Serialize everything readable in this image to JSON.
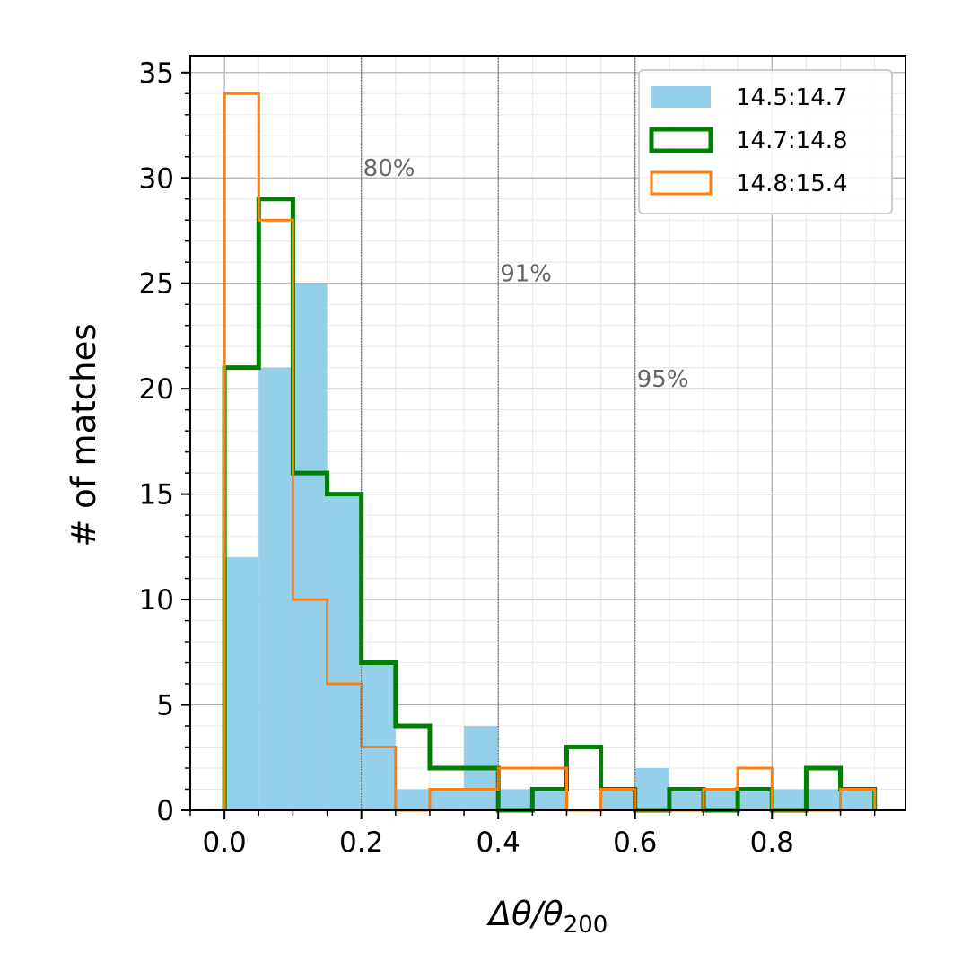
{
  "chart_data": {
    "type": "histogram",
    "xlabel": "Δθ/θ",
    "xlabel_sub": "200",
    "ylabel": "# of matches",
    "xlim": [
      -0.05,
      0.995
    ],
    "ylim": [
      0,
      35.8
    ],
    "x_ticks": [
      0.0,
      0.2,
      0.4,
      0.6,
      0.8
    ],
    "x_tick_labels": [
      "0.0",
      "0.2",
      "0.4",
      "0.6",
      "0.8"
    ],
    "y_ticks": [
      0,
      5,
      10,
      15,
      20,
      25,
      30,
      35
    ],
    "y_tick_labels": [
      "0",
      "5",
      "10",
      "15",
      "20",
      "25",
      "30",
      "35"
    ],
    "grid": true,
    "minor_grid": true,
    "legend_placement": "upper right",
    "bin_edges": [
      0.0,
      0.05,
      0.1,
      0.15,
      0.2,
      0.25,
      0.3,
      0.35,
      0.4,
      0.45,
      0.5,
      0.55,
      0.6,
      0.65,
      0.7,
      0.75,
      0.8,
      0.85,
      0.9,
      0.95
    ],
    "series": [
      {
        "name": "14.5:14.7",
        "style": "filled",
        "color": "#95d0eb",
        "counts": [
          12,
          21,
          25,
          15,
          7,
          1,
          1,
          4,
          1,
          1,
          0,
          1,
          2,
          1,
          1,
          1,
          1,
          1,
          1
        ]
      },
      {
        "name": "14.7:14.8",
        "style": "step",
        "color": "#008000",
        "counts": [
          21,
          29,
          16,
          15,
          7,
          4,
          2,
          2,
          0,
          1,
          3,
          1,
          0,
          1,
          0,
          1,
          0,
          2,
          1
        ]
      },
      {
        "name": "14.8:15.4",
        "style": "step",
        "color": "#ff7f0e",
        "counts": [
          34,
          28,
          10,
          6,
          3,
          0,
          1,
          1,
          2,
          2,
          0,
          1,
          0,
          0,
          1,
          2,
          0,
          0,
          1
        ]
      }
    ],
    "vlines": [
      {
        "x": 0.2,
        "label": "80%",
        "label_y": 30.1
      },
      {
        "x": 0.4,
        "label": "91%",
        "label_y": 25.1
      },
      {
        "x": 0.6,
        "label": "95%",
        "label_y": 20.1
      }
    ]
  }
}
